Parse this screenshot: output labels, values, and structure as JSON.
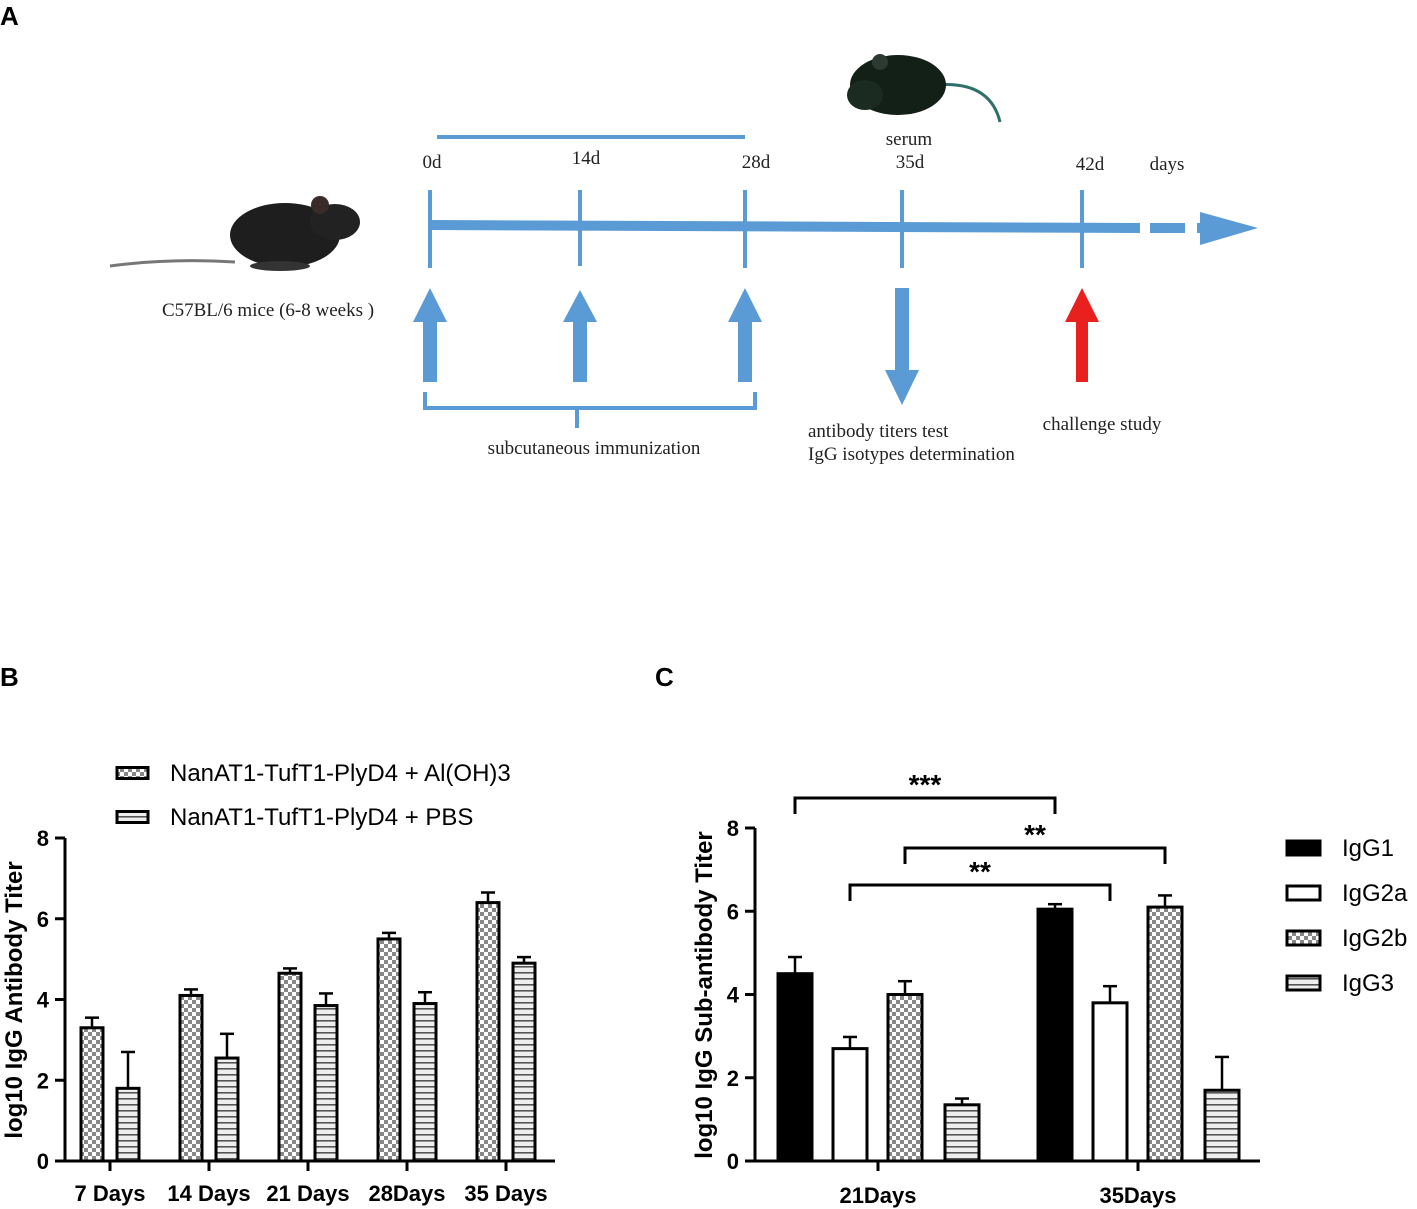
{
  "panels": {
    "a": "A",
    "b": "B",
    "c": "C"
  },
  "timeline": {
    "days": [
      "0d",
      "14d",
      "28d",
      "35d",
      "42d"
    ],
    "unit": "days",
    "serum": "serum",
    "mice": "C57BL/6 mice (6-8 weeks )",
    "immunization": "subcutaneous immunization",
    "test_lines": [
      "antibody titers test",
      "IgG isotypes determination"
    ],
    "challenge": "challenge study"
  },
  "chart_data": [
    {
      "type": "bar",
      "ylabel": "log10 IgG Antibody Titer",
      "categories": [
        "7 Days",
        "14 Days",
        "21 Days",
        "28Days",
        "35 Days"
      ],
      "series": [
        {
          "name": "NanAT1-TufT1-PlyD4 + Al(OH)3",
          "pattern": "checker",
          "values": [
            3.3,
            4.1,
            4.65,
            5.5,
            6.4
          ],
          "errors": [
            0.25,
            0.15,
            0.12,
            0.15,
            0.25
          ]
        },
        {
          "name": "NanAT1-TufT1-PlyD4 + PBS",
          "pattern": "stripes",
          "values": [
            1.8,
            2.55,
            3.85,
            3.9,
            4.9
          ],
          "errors": [
            0.9,
            0.6,
            0.3,
            0.28,
            0.15
          ]
        }
      ],
      "ylim": [
        0,
        8
      ],
      "yticks": [
        0,
        2,
        4,
        6,
        8
      ]
    },
    {
      "type": "bar",
      "ylabel": "log10 IgG Sub-antibody Titer",
      "categories": [
        "21Days",
        "35Days"
      ],
      "series": [
        {
          "name": "IgG1",
          "pattern": "solid",
          "values": [
            4.5,
            6.05
          ],
          "errors": [
            0.4,
            0.12
          ]
        },
        {
          "name": "IgG2a",
          "pattern": "empty",
          "values": [
            2.7,
            3.8
          ],
          "errors": [
            0.28,
            0.4
          ]
        },
        {
          "name": "IgG2b",
          "pattern": "checker",
          "values": [
            4.0,
            6.1
          ],
          "errors": [
            0.32,
            0.28
          ]
        },
        {
          "name": "IgG3",
          "pattern": "stripes",
          "values": [
            1.35,
            1.7
          ],
          "errors": [
            0.15,
            0.8
          ]
        }
      ],
      "ylim": [
        0,
        8
      ],
      "yticks": [
        0,
        2,
        4,
        6,
        8
      ],
      "annotations": [
        "***",
        "**",
        "**"
      ]
    }
  ]
}
